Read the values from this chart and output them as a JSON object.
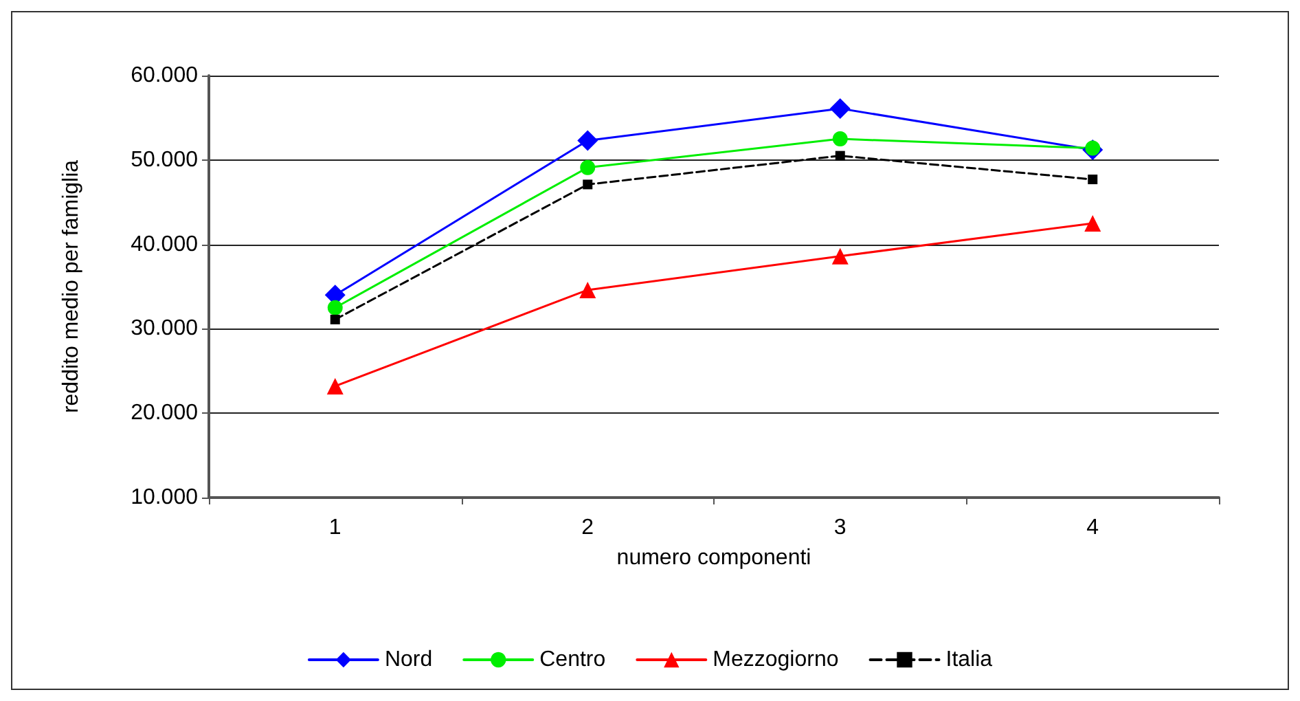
{
  "chart_data": {
    "type": "line",
    "xlabel": "numero componenti",
    "ylabel": "reddito medio per famiglia",
    "categories": [
      "1",
      "2",
      "3",
      "4"
    ],
    "series": [
      {
        "name": "Nord",
        "color": "#0000ff",
        "marker": "diamond",
        "line_style": "solid",
        "values": [
          34000,
          52300,
          56100,
          51200
        ]
      },
      {
        "name": "Centro",
        "color": "#00ee00",
        "marker": "circle",
        "line_style": "solid",
        "values": [
          32500,
          49100,
          52500,
          51400
        ]
      },
      {
        "name": "Mezzogiorno",
        "color": "#ff0000",
        "marker": "triangle",
        "line_style": "solid",
        "values": [
          23200,
          34600,
          38600,
          42500
        ]
      },
      {
        "name": "Italia",
        "color": "#000000",
        "marker": "square",
        "line_style": "dashed",
        "values": [
          31100,
          47100,
          50500,
          47700
        ]
      }
    ],
    "ylim": [
      10000,
      60000
    ],
    "yticks": [
      {
        "value": 10000,
        "label": "10.000"
      },
      {
        "value": 20000,
        "label": "20.000"
      },
      {
        "value": 30000,
        "label": "30.000"
      },
      {
        "value": 40000,
        "label": "40.000"
      },
      {
        "value": 50000,
        "label": "50.000"
      },
      {
        "value": 60000,
        "label": "60.000"
      }
    ],
    "grid": "y",
    "legend": "bottom"
  }
}
